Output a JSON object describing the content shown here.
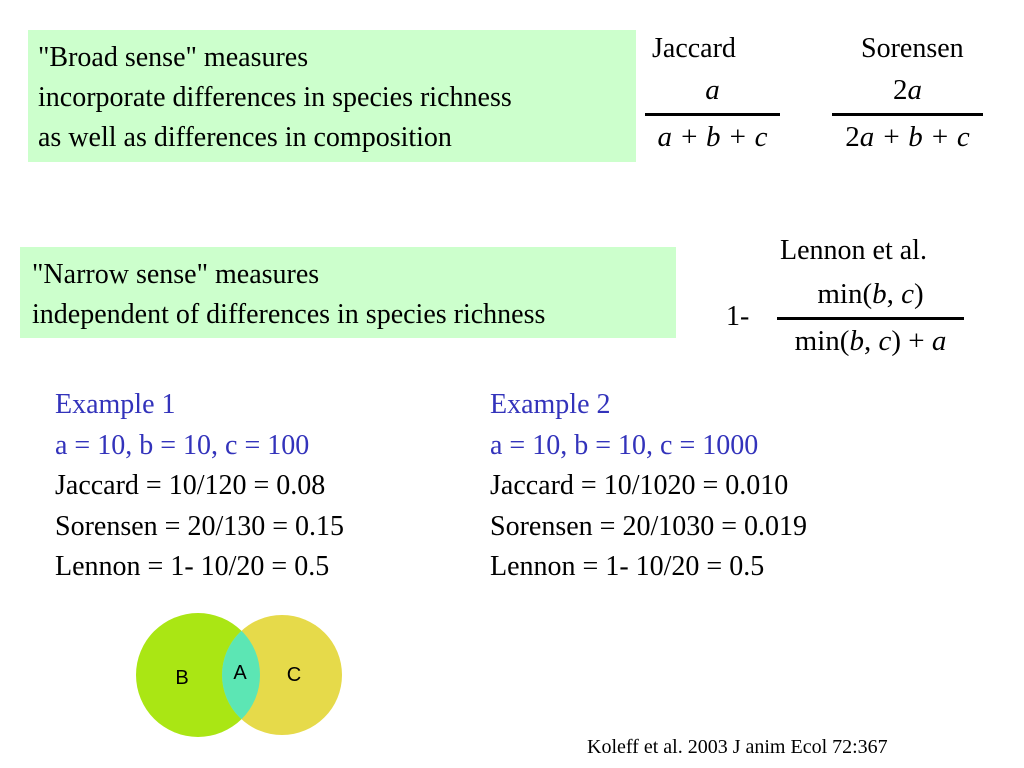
{
  "broad_box": {
    "lines": [
      "\"Broad sense\" measures",
      "incorporate differences in species richness",
      "as well as differences in composition"
    ]
  },
  "narrow_box": {
    "lines": [
      "\"Narrow sense\" measures",
      "independent of differences in species richness"
    ]
  },
  "jaccard": {
    "title": "Jaccard",
    "numerator": "a",
    "denominator": "a + b + c"
  },
  "sorensen": {
    "title": "Sorensen",
    "numerator_coef": "2",
    "numerator_var": "a",
    "denominator_coef": "2",
    "denominator_var": "a",
    "denominator_rest": " + b + c"
  },
  "lennon": {
    "title": "Lennon et al.",
    "prefix": "1-",
    "numerator": [
      "min(",
      "b",
      ", ",
      "c",
      ")"
    ],
    "denominator": [
      "min(",
      "b",
      ", ",
      "c",
      ") + ",
      "a"
    ]
  },
  "example1": {
    "title": "Example 1",
    "params": "a = 10, b = 10, c = 100",
    "jaccard": "Jaccard = 10/120 = 0.08",
    "sorensen": "Sorensen = 20/130 = 0.15",
    "lennon": "Lennon = 1- 10/20 = 0.5"
  },
  "example2": {
    "title": "Example 2",
    "params": "a = 10, b = 10, c = 1000",
    "jaccard": "Jaccard = 10/1020 = 0.010",
    "sorensen": "Sorensen = 20/1030 = 0.019",
    "lennon": "Lennon = 1- 10/20 = 0.5"
  },
  "venn": {
    "labels": {
      "b": "B",
      "a": "A",
      "c": "C"
    },
    "colors": {
      "b": "#aae614",
      "c": "#e6da4a",
      "a": "#5ce6b4"
    }
  },
  "citation": "Koleff et al. 2003 J anim Ecol 72:367",
  "colors": {
    "box_background": "#ccffcc",
    "example_header": "#3333bb"
  }
}
